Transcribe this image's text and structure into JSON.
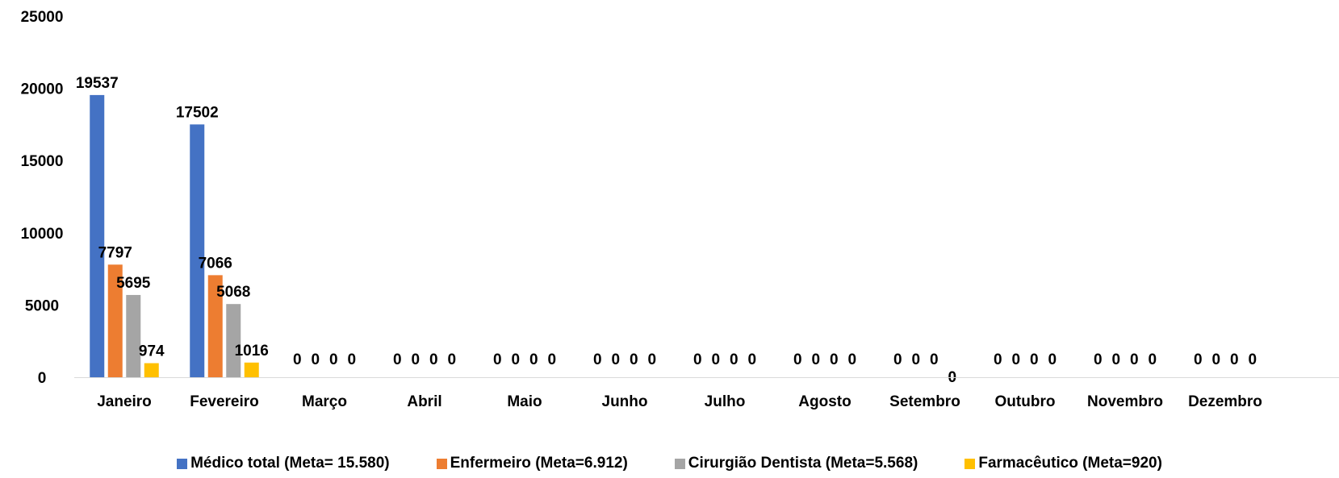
{
  "chart_data": {
    "type": "bar",
    "title": "",
    "xlabel": "",
    "ylabel": "",
    "ylim": [
      0,
      25000
    ],
    "yticks": [
      0,
      5000,
      10000,
      15000,
      20000,
      25000
    ],
    "grid": false,
    "legend_position": "bottom",
    "categories": [
      "Janeiro",
      "Fevereiro",
      "Março",
      "Abril",
      "Maio",
      "Junho",
      "Julho",
      "Agosto",
      "Setembro",
      "Outubro",
      "Novembro",
      "Dezembro"
    ],
    "series": [
      {
        "name": "Médico total (Meta= 15.580)",
        "color": "#4472C4",
        "values": [
          19537,
          17502,
          0,
          0,
          0,
          0,
          0,
          0,
          0,
          0,
          0,
          0
        ]
      },
      {
        "name": "Enfermeiro (Meta=6.912)",
        "color": "#ED7D31",
        "values": [
          7797,
          7066,
          0,
          0,
          0,
          0,
          0,
          0,
          0,
          0,
          0,
          0
        ]
      },
      {
        "name": "Cirurgião Dentista (Meta=5.568)",
        "color": "#A5A5A5",
        "values": [
          5695,
          5068,
          0,
          0,
          0,
          0,
          0,
          0,
          0,
          0,
          0,
          0
        ]
      },
      {
        "name": "Farmacêutico (Meta=920)",
        "color": "#FFC000",
        "values": [
          974,
          1016,
          0,
          0,
          0,
          0,
          0,
          0,
          0,
          0,
          0,
          0
        ]
      }
    ]
  }
}
